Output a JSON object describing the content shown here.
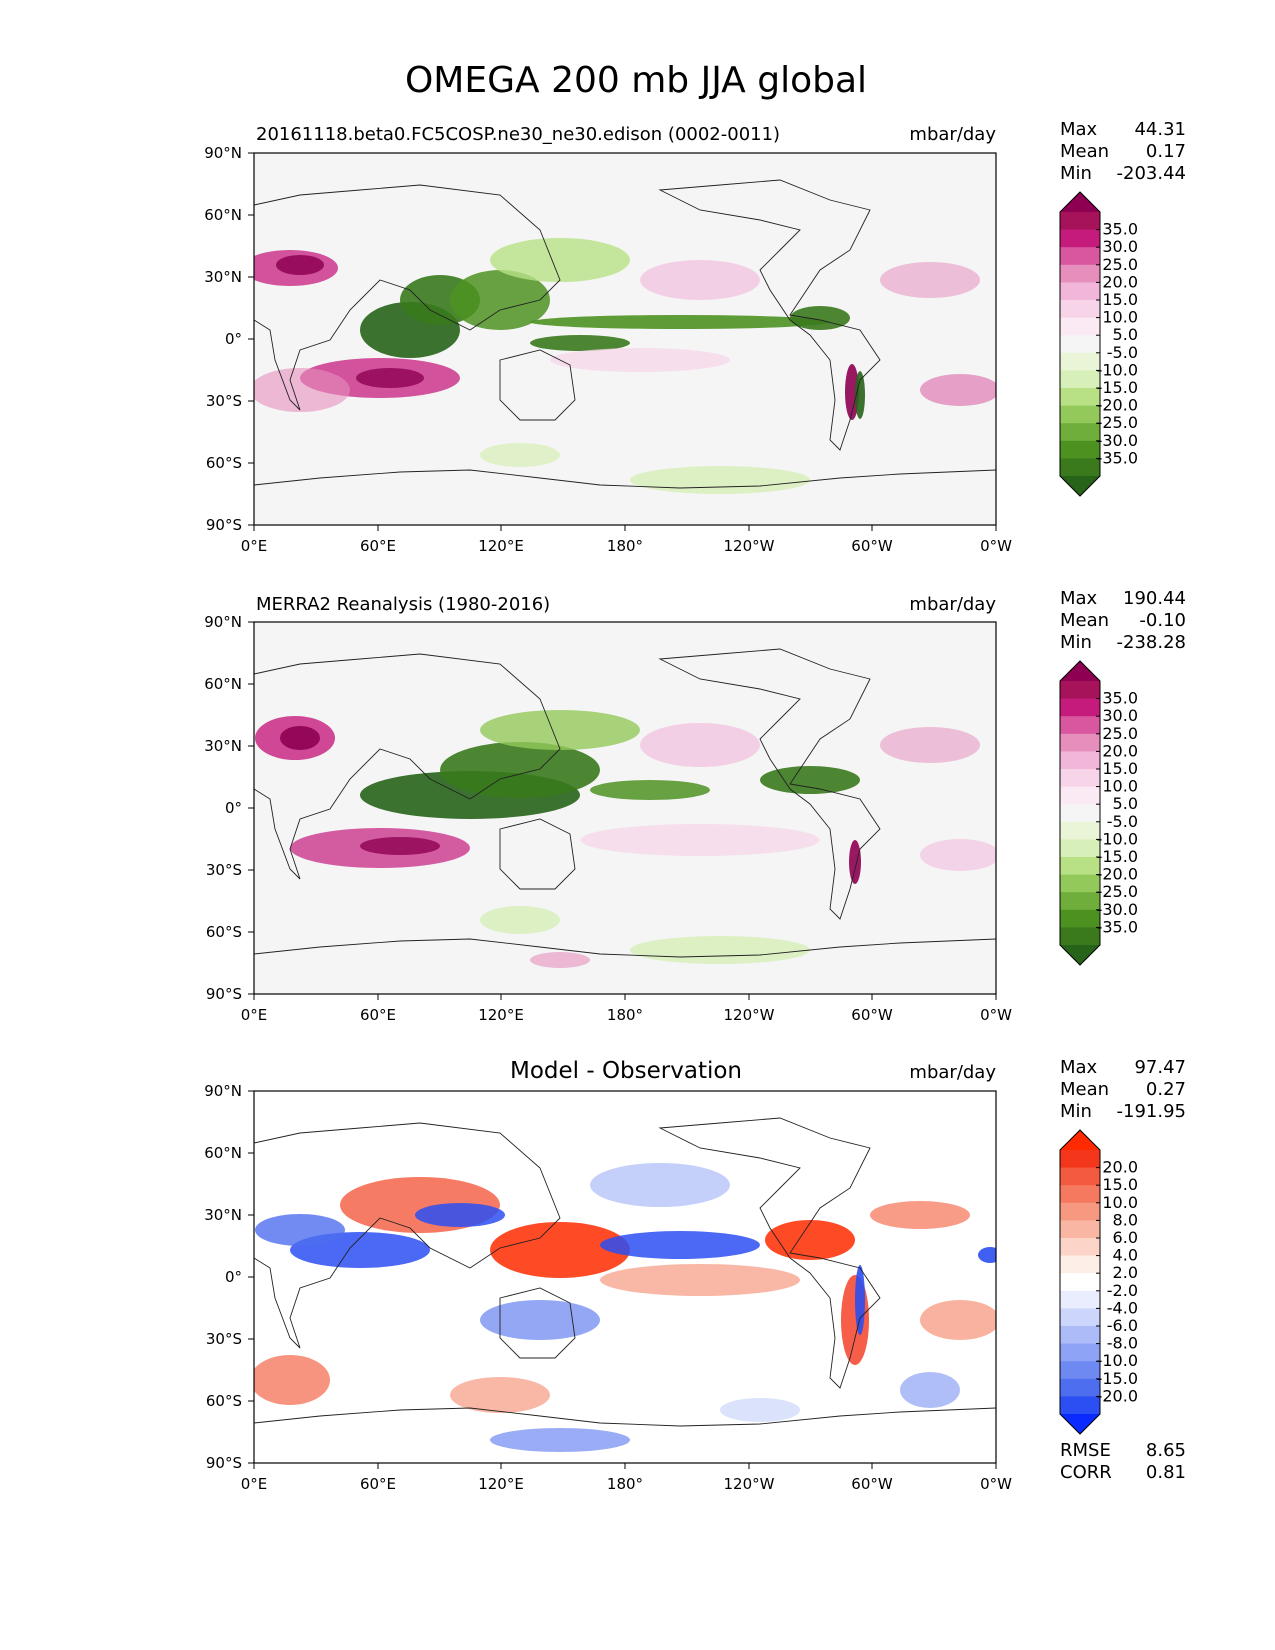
{
  "chart_data": {
    "type": "heatmap",
    "title": "OMEGA 200 mb JJA global",
    "lat_ticks": [
      "90°N",
      "60°N",
      "30°N",
      "0°",
      "30°S",
      "60°S",
      "90°S"
    ],
    "lon_ticks": [
      "0°E",
      "60°E",
      "120°E",
      "180°",
      "120°W",
      "60°W",
      "0°W"
    ],
    "panels": [
      {
        "name": "model",
        "title": "20161118.beta0.FC5COSP.ne30_ne30.edison (0002-0011)",
        "units": "mbar/day",
        "stats": [
          {
            "label": "Max",
            "value": "44.31"
          },
          {
            "label": "Mean",
            "value": "0.17"
          },
          {
            "label": "Min",
            "value": "-203.44"
          }
        ],
        "colorbar": {
          "levels": [
            "35.0",
            "30.0",
            "25.0",
            "20.0",
            "15.0",
            "10.0",
            "5.0",
            "-5.0",
            "-10.0",
            "-15.0",
            "-20.0",
            "-25.0",
            "-30.0",
            "-35.0"
          ],
          "colors": [
            "#8e0152",
            "#a6135a",
            "#c51b7d",
            "#d9579f",
            "#e68fbd",
            "#f1b6da",
            "#f7d4e8",
            "#fbe9f3",
            "#f5f5f5",
            "#e9f5d6",
            "#d7efb8",
            "#b8e186",
            "#93c95a",
            "#6fae3a",
            "#4d9221",
            "#3a7a1d",
            "#276419"
          ]
        }
      },
      {
        "name": "observation",
        "title": "MERRA2 Reanalysis (1980-2016)",
        "units": "mbar/day",
        "stats": [
          {
            "label": "Max",
            "value": "190.44"
          },
          {
            "label": "Mean",
            "value": "-0.10"
          },
          {
            "label": "Min",
            "value": "-238.28"
          }
        ],
        "colorbar": {
          "levels": [
            "35.0",
            "30.0",
            "25.0",
            "20.0",
            "15.0",
            "10.0",
            "5.0",
            "-5.0",
            "-10.0",
            "-15.0",
            "-20.0",
            "-25.0",
            "-30.0",
            "-35.0"
          ],
          "colors": [
            "#8e0152",
            "#a6135a",
            "#c51b7d",
            "#d9579f",
            "#e68fbd",
            "#f1b6da",
            "#f7d4e8",
            "#fbe9f3",
            "#f5f5f5",
            "#e9f5d6",
            "#d7efb8",
            "#b8e186",
            "#93c95a",
            "#6fae3a",
            "#4d9221",
            "#3a7a1d",
            "#276419"
          ]
        }
      },
      {
        "name": "difference",
        "title": "Model - Observation",
        "units": "mbar/day",
        "stats": [
          {
            "label": "Max",
            "value": "97.47"
          },
          {
            "label": "Mean",
            "value": "0.27"
          },
          {
            "label": "Min",
            "value": "-191.95"
          }
        ],
        "colorbar": {
          "levels": [
            "20.0",
            "15.0",
            "10.0",
            "8.0",
            "6.0",
            "4.0",
            "2.0",
            "-2.0",
            "-4.0",
            "-6.0",
            "-8.0",
            "-10.0",
            "-15.0",
            "-20.0"
          ],
          "colors": [
            "#ff2a00",
            "#f4361c",
            "#f45a3f",
            "#f5795f",
            "#f79880",
            "#f9b6a2",
            "#fcd5c8",
            "#feeee8",
            "#ffffff",
            "#e9edfd",
            "#ccd5fb",
            "#adbcf8",
            "#8ea3f5",
            "#6f89f2",
            "#4e6ef0",
            "#2b4ff2",
            "#0a2aff"
          ]
        },
        "extra_stats": [
          {
            "label": "RMSE",
            "value": "8.65"
          },
          {
            "label": "CORR",
            "value": "0.81"
          }
        ]
      }
    ]
  }
}
